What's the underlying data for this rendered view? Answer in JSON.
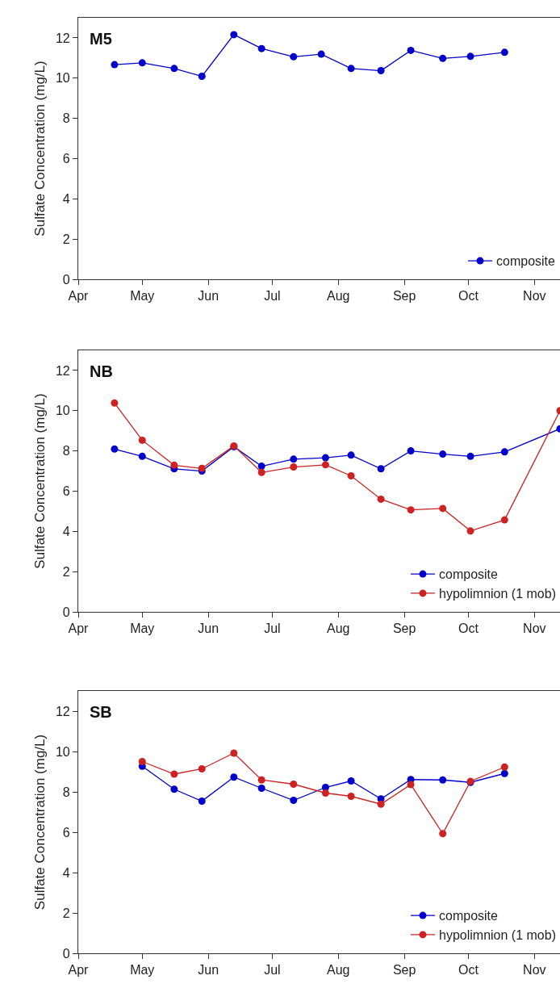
{
  "chart_data": [
    {
      "type": "line",
      "title": "M5",
      "ylabel": "Sulfate Concentration (mg/L)",
      "x": [
        "--04-18",
        "--05-01",
        "--05-16",
        "--05-29",
        "--06-13",
        "--06-26",
        "--07-11",
        "--07-24",
        "--08-07",
        "--08-21",
        "--09-04",
        "--09-19",
        "--10-02",
        "--10-18"
      ],
      "series": [
        {
          "name": "composite",
          "color": "#0000cc",
          "values": [
            10.67,
            10.76,
            10.48,
            10.09,
            12.16,
            11.47,
            11.06,
            11.19,
            10.48,
            10.37,
            11.38,
            10.98,
            11.08,
            11.28
          ]
        }
      ],
      "xlim": [
        "--04-01",
        "--11-13"
      ],
      "xticks": [
        {
          "value": "--04-01",
          "label": "Apr"
        },
        {
          "value": "--05-01",
          "label": "May"
        },
        {
          "value": "--06-01",
          "label": "Jun"
        },
        {
          "value": "--07-01",
          "label": "Jul"
        },
        {
          "value": "--08-01",
          "label": "Aug"
        },
        {
          "value": "--09-01",
          "label": "Sep"
        },
        {
          "value": "--10-01",
          "label": "Oct"
        },
        {
          "value": "--11-01",
          "label": "Nov"
        }
      ],
      "ylim": [
        0,
        13
      ],
      "yticks": [
        0,
        2,
        4,
        6,
        8,
        10,
        12
      ],
      "legend": "bottom right",
      "marker": "circle",
      "line_style": "solid"
    },
    {
      "type": "line",
      "title": "NB",
      "ylabel": "Sulfate Concentration (mg/L)",
      "x": [
        "--04-18",
        "--05-01",
        "--05-16",
        "--05-29",
        "--06-13",
        "--06-26",
        "--07-11",
        "--07-26",
        "--08-07",
        "--08-21",
        "--09-04",
        "--09-19",
        "--10-02",
        "--10-18",
        "--11-13"
      ],
      "series": [
        {
          "name": "composite",
          "color": "#0000cc",
          "values": [
            8.09,
            7.73,
            7.11,
            7.0,
            8.21,
            7.24,
            7.59,
            7.66,
            7.79,
            7.11,
            8.0,
            7.84,
            7.73,
            7.95,
            9.1
          ]
        },
        {
          "name": "hypolimnion (1 mob)",
          "color": "#cc2222",
          "values": [
            10.38,
            8.53,
            7.29,
            7.13,
            8.25,
            6.93,
            7.2,
            7.31,
            6.76,
            5.6,
            5.07,
            5.14,
            4.02,
            4.57,
            10.0
          ]
        }
      ],
      "xlim": [
        "--04-01",
        "--11-13"
      ],
      "xticks": [
        {
          "value": "--04-01",
          "label": "Apr"
        },
        {
          "value": "--05-01",
          "label": "May"
        },
        {
          "value": "--06-01",
          "label": "Jun"
        },
        {
          "value": "--07-01",
          "label": "Jul"
        },
        {
          "value": "--08-01",
          "label": "Aug"
        },
        {
          "value": "--09-01",
          "label": "Sep"
        },
        {
          "value": "--10-01",
          "label": "Oct"
        },
        {
          "value": "--11-01",
          "label": "Nov"
        }
      ],
      "ylim": [
        0,
        13
      ],
      "yticks": [
        0,
        2,
        4,
        6,
        8,
        10,
        12
      ],
      "legend": "bottom right",
      "marker": "circle",
      "line_style": "solid"
    },
    {
      "type": "line",
      "title": "SB",
      "ylabel": "Sulfate Concentration (mg/L)",
      "x": [
        "--05-01",
        "--05-16",
        "--05-29",
        "--06-13",
        "--06-26",
        "--07-11",
        "--07-26",
        "--08-07",
        "--08-21",
        "--09-04",
        "--09-19",
        "--10-02",
        "--10-18"
      ],
      "series": [
        {
          "name": "composite",
          "color": "#0000cc",
          "values": [
            9.27,
            8.13,
            7.54,
            8.73,
            8.18,
            7.58,
            8.22,
            8.54,
            7.65,
            8.61,
            8.59,
            8.47,
            8.91
          ]
        },
        {
          "name": "hypolimnion (1 mob)",
          "color": "#cc2222",
          "values": [
            9.5,
            8.88,
            9.14,
            9.92,
            8.59,
            8.38,
            7.94,
            7.78,
            7.39,
            8.36,
            5.93,
            8.52,
            9.23
          ]
        }
      ],
      "xlim": [
        "--04-01",
        "--11-13"
      ],
      "xticks": [
        {
          "value": "--04-01",
          "label": "Apr"
        },
        {
          "value": "--05-01",
          "label": "May"
        },
        {
          "value": "--06-01",
          "label": "Jun"
        },
        {
          "value": "--07-01",
          "label": "Jul"
        },
        {
          "value": "--08-01",
          "label": "Aug"
        },
        {
          "value": "--09-01",
          "label": "Sep"
        },
        {
          "value": "--10-01",
          "label": "Oct"
        },
        {
          "value": "--11-01",
          "label": "Nov"
        }
      ],
      "ylim": [
        0,
        13
      ],
      "yticks": [
        0,
        2,
        4,
        6,
        8,
        10,
        12
      ],
      "legend": "bottom right",
      "marker": "circle",
      "line_style": "solid"
    }
  ]
}
